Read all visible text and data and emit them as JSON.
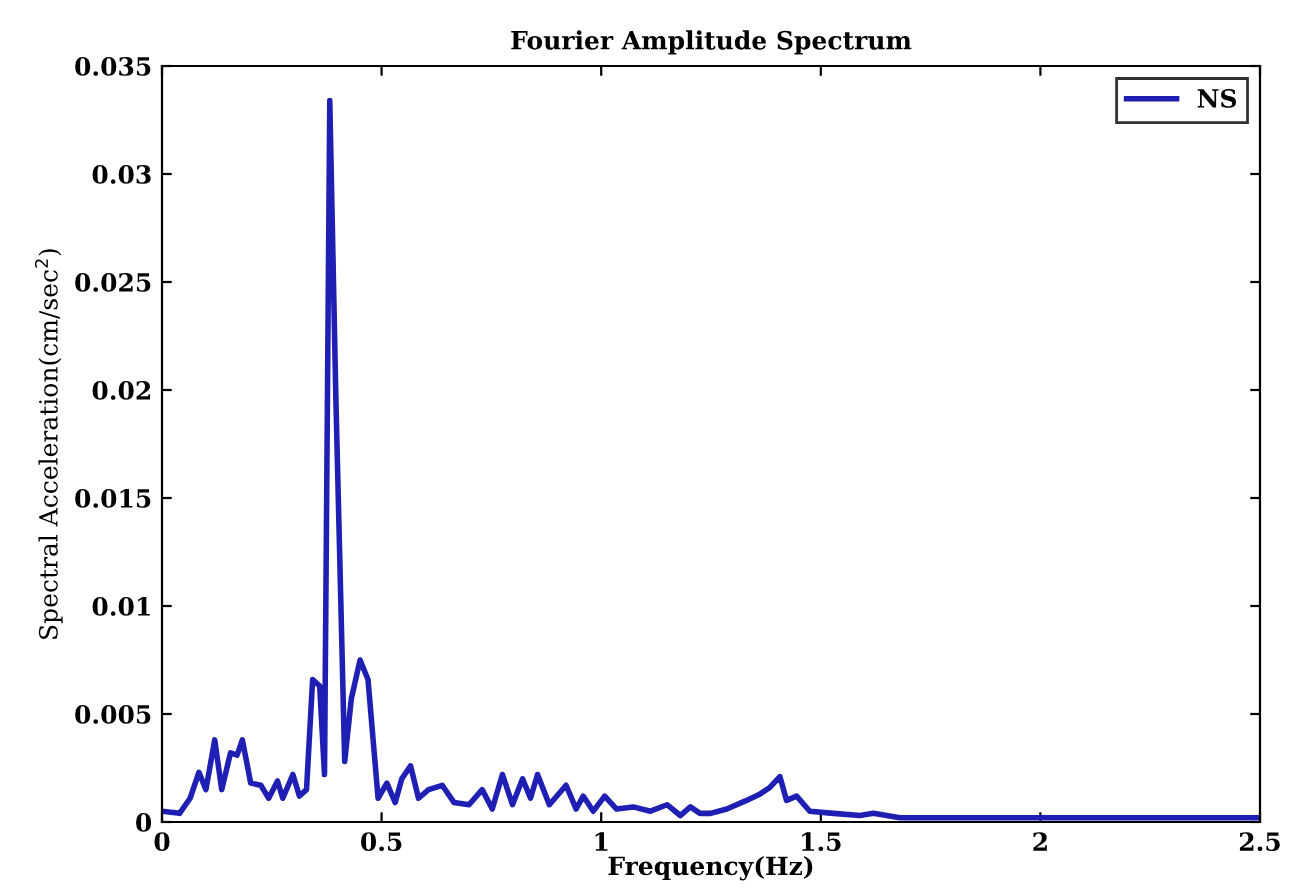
{
  "chart_data": {
    "type": "line",
    "title": "Fourier Amplitude Spectrum",
    "xlabel": "Frequency(Hz)",
    "ylabel": "Spectral Acceleration(cm/sec$^{2}$)",
    "xlim": [
      0,
      2.5
    ],
    "xticks": [
      0,
      0.5,
      1,
      1.5,
      2,
      2.5
    ],
    "ylim": [
      0,
      0.035
    ],
    "yticks": [
      0,
      0.005,
      0.01,
      0.015,
      0.02,
      0.025,
      0.03,
      0.035
    ],
    "grid": false,
    "legend": "top right",
    "marker": "none",
    "line_style": "solid",
    "x": [
      0,
      0.04,
      0.064,
      0.084,
      0.1,
      0.12,
      0.136,
      0.156,
      0.171,
      0.183,
      0.202,
      0.225,
      0.243,
      0.263,
      0.275,
      0.298,
      0.313,
      0.329,
      0.343,
      0.359,
      0.37,
      0.382,
      0.396,
      0.416,
      0.431,
      0.451,
      0.469,
      0.492,
      0.512,
      0.531,
      0.546,
      0.566,
      0.584,
      0.607,
      0.638,
      0.665,
      0.699,
      0.729,
      0.752,
      0.775,
      0.798,
      0.821,
      0.839,
      0.855,
      0.882,
      0.92,
      0.943,
      0.959,
      0.982,
      1.008,
      1.035,
      1.073,
      1.112,
      1.15,
      1.18,
      1.203,
      1.225,
      1.249,
      1.286,
      1.331,
      1.362,
      1.384,
      1.407,
      1.422,
      1.445,
      1.475,
      1.529,
      1.589,
      1.62,
      1.68,
      2.0,
      2.5
    ],
    "series": [
      {
        "name": "NS",
        "color": "#1f1fb4",
        "values": [
          0.0005,
          0.0004,
          0.0011,
          0.0023,
          0.0015,
          0.0038,
          0.0015,
          0.0032,
          0.0031,
          0.0038,
          0.0018,
          0.0017,
          0.0011,
          0.0019,
          0.0011,
          0.0022,
          0.0012,
          0.0015,
          0.0066,
          0.0063,
          0.0022,
          0.0334,
          0.0195,
          0.0028,
          0.0057,
          0.0075,
          0.0066,
          0.0011,
          0.0018,
          0.0009,
          0.002,
          0.0026,
          0.0011,
          0.0015,
          0.0017,
          0.0009,
          0.0008,
          0.0015,
          0.0006,
          0.0022,
          0.0008,
          0.002,
          0.0011,
          0.0022,
          0.0008,
          0.0017,
          0.0006,
          0.0012,
          0.0005,
          0.0012,
          0.0006,
          0.0007,
          0.0005,
          0.0008,
          0.0003,
          0.0007,
          0.0004,
          0.0004,
          0.0006,
          0.001,
          0.0013,
          0.0016,
          0.0021,
          0.001,
          0.0012,
          0.0005,
          0.0004,
          0.0003,
          0.0004,
          0.0002,
          0.0002,
          0.0002
        ]
      }
    ]
  }
}
